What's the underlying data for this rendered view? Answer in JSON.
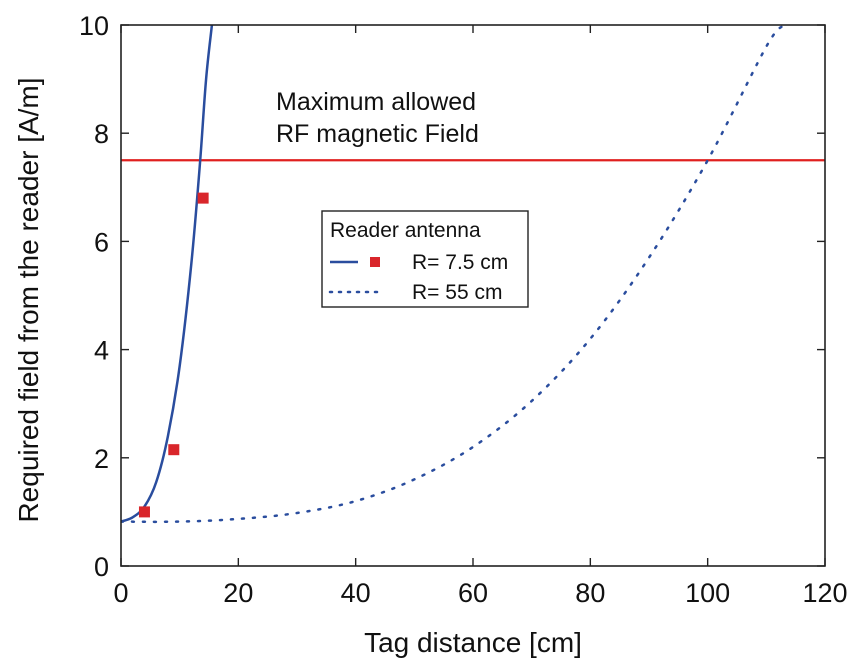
{
  "chart_data": {
    "type": "line",
    "xlabel": "Tag distance [cm]",
    "ylabel": "Required field from the reader [A/m]",
    "xlim": [
      0,
      120
    ],
    "ylim": [
      0,
      10
    ],
    "xticks": [
      0,
      20,
      40,
      60,
      80,
      100,
      120
    ],
    "yticks": [
      0,
      2,
      4,
      6,
      8,
      10
    ],
    "grid": false,
    "legend": {
      "title": "Reader antenna",
      "placement": "center",
      "entries": [
        "R= 7.5 cm",
        "R= 55 cm"
      ]
    },
    "annotation": {
      "lines": [
        "Maximum allowed",
        "RF magnetic Field"
      ]
    },
    "series": [
      {
        "name": "R= 7.5 cm",
        "style": "solid",
        "color": "#2a4d9e",
        "x": [
          0,
          2,
          4,
          6,
          8,
          10,
          12,
          13.5,
          14.5,
          15.5
        ],
        "y": [
          0.82,
          0.9,
          1.1,
          1.55,
          2.4,
          3.7,
          5.6,
          7.5,
          9.0,
          10.0
        ]
      },
      {
        "name": "R= 7.5 cm",
        "style": "markers",
        "color": "#d9262b",
        "x": [
          4,
          9,
          14
        ],
        "y": [
          1.0,
          2.15,
          6.8
        ]
      },
      {
        "name": "R= 55 cm",
        "style": "dotted",
        "color": "#2a4d9e",
        "x": [
          0,
          10,
          20,
          30,
          40,
          50,
          60,
          70,
          80,
          90,
          100,
          110,
          113
        ],
        "y": [
          0.82,
          0.82,
          0.87,
          0.98,
          1.2,
          1.6,
          2.2,
          3.05,
          4.2,
          5.7,
          7.5,
          9.6,
          10.0
        ]
      }
    ],
    "reference_line": {
      "y": 7.5,
      "color": "#e0201f"
    }
  }
}
